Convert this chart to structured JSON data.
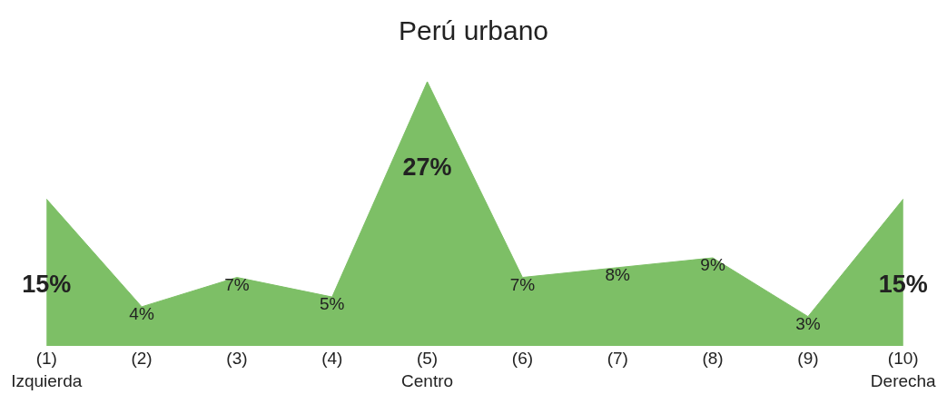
{
  "chart_data": {
    "type": "area",
    "title": "Perú urbano",
    "categories": [
      "(1)\nIzquierda",
      "(2)",
      "(3)",
      "(4)",
      "(5)\nCentro",
      "(6)",
      "(7)",
      "(8)",
      "(9)",
      "(10)\nDerecha"
    ],
    "values": [
      15,
      4,
      7,
      5,
      27,
      7,
      8,
      9,
      3,
      15
    ],
    "value_labels": [
      "15%",
      "4%",
      "7%",
      "5%",
      "27%",
      "7%",
      "8%",
      "9%",
      "3%",
      "15%"
    ],
    "color": "#7dbf66"
  }
}
